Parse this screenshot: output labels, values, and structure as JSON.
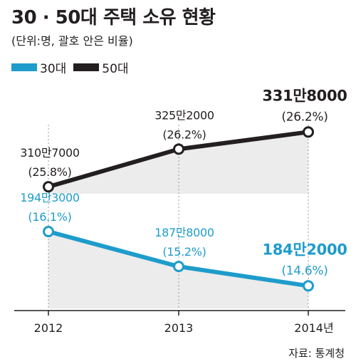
{
  "header": {
    "title": "30 · 50대 주택 소유 현황",
    "subtitle": "(단위:명, 괄호 안은 비율)"
  },
  "legend": [
    {
      "label": "30대",
      "color": "#1e9ccb"
    },
    {
      "label": "50대",
      "color": "#231f20"
    }
  ],
  "source": "자료: 통계청",
  "chart_data": {
    "type": "line",
    "title": "30 · 50대 주택 소유 현황",
    "subtitle": "(단위:명, 괄호 안은 비율)",
    "categories": [
      "2012",
      "2013",
      "2014년"
    ],
    "series": [
      {
        "name": "50대",
        "color": "#231f20",
        "values": [
          3107000,
          3252000,
          3318000
        ],
        "labels": [
          "310만7000",
          "325만2000",
          "331만8000"
        ],
        "ratios": [
          "(25.8%)",
          "(26.2%)",
          "(26.2%)"
        ],
        "emphasize_last": true
      },
      {
        "name": "30대",
        "color": "#1e9ccb",
        "values": [
          1943000,
          1878000,
          1842000
        ],
        "labels": [
          "194만3000",
          "187만8000",
          "184만2000"
        ],
        "ratios": [
          "(16.1%)",
          "(15.2%)",
          "(14.6%)"
        ],
        "emphasize_last": true
      }
    ],
    "axis_break": true,
    "grid": false,
    "legend_position": "top-left"
  }
}
